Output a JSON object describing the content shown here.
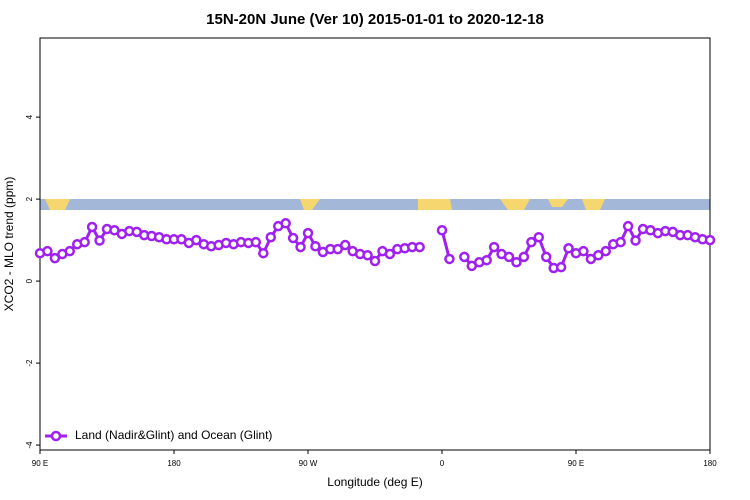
{
  "chart_data": {
    "type": "line",
    "title": "15N-20N June (Ver 10)   2015-01-01 to 2020-12-18",
    "xlabel": "Longitude (deg E)",
    "ylabel": "XCO2 - MLO trend (ppm)",
    "x": [
      90,
      95,
      100,
      105,
      110,
      115,
      120,
      125,
      130,
      135,
      140,
      145,
      150,
      155,
      160,
      165,
      170,
      175,
      180,
      185,
      190,
      195,
      200,
      205,
      210,
      215,
      220,
      225,
      230,
      235,
      240,
      245,
      250,
      255,
      260,
      265,
      270,
      275,
      280,
      285,
      290,
      295,
      300,
      305,
      310,
      315,
      320,
      325,
      330,
      335,
      340,
      345,
      350,
      355,
      360,
      365,
      370,
      375,
      380,
      385,
      390,
      395,
      400,
      405,
      410,
      415,
      420,
      425,
      430,
      435,
      440,
      445,
      450,
      455,
      460,
      465,
      470,
      475,
      480,
      485,
      490,
      495,
      500,
      505,
      510,
      515,
      520,
      525,
      530,
      535,
      540
    ],
    "series": [
      {
        "name": "Land (Nadir&Glint) and Ocean (Glint)",
        "color": "#a020f0",
        "values": [
          0.68,
          0.73,
          0.56,
          0.66,
          0.73,
          0.9,
          0.95,
          1.32,
          0.99,
          1.27,
          1.24,
          1.15,
          1.22,
          1.2,
          1.12,
          1.1,
          1.07,
          1.02,
          1.02,
          1.02,
          0.93,
          1.0,
          0.9,
          0.85,
          0.88,
          0.93,
          0.9,
          0.95,
          0.93,
          0.95,
          0.68,
          1.07,
          1.34,
          1.41,
          1.05,
          0.83,
          1.17,
          0.85,
          0.71,
          0.78,
          0.78,
          0.88,
          0.73,
          0.66,
          0.63,
          0.49,
          0.73,
          0.66,
          0.78,
          0.8,
          0.83,
          0.83,
          null,
          null,
          1.24,
          0.54,
          null,
          0.59,
          0.37,
          0.46,
          0.51,
          0.83,
          0.66,
          0.59,
          0.46,
          0.59,
          0.95,
          1.07,
          0.59,
          0.32,
          0.34,
          0.8,
          0.68,
          0.73,
          0.54,
          0.63,
          0.73,
          0.9,
          0.95,
          1.34,
          0.99,
          1.27,
          1.24,
          1.17,
          1.22,
          1.2,
          1.12,
          1.12,
          1.07,
          1.02,
          1.0
        ]
      }
    ],
    "xlim": [
      90,
      540
    ],
    "xticks": [
      {
        "value": 90,
        "label": "90 E"
      },
      180,
      {
        "value": 270,
        "label": "90 W"
      },
      {
        "value": 360,
        "label": "0"
      },
      {
        "value": 450,
        "label": "90 E"
      },
      {
        "value": 540,
        "label": "180"
      }
    ],
    "ylim": [
      -4.12,
      5.93
    ],
    "yticks": [
      -4,
      -2,
      0,
      2,
      4
    ],
    "legend": "bottom-left"
  }
}
